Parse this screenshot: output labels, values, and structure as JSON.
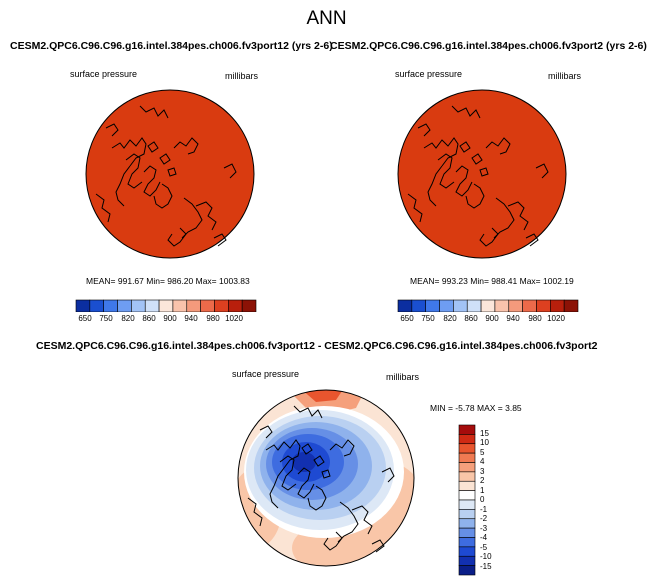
{
  "title": "ANN",
  "panels": [
    {
      "case": "CESM2.QPC6.C96.C96.g16.intel.384pes.ch006.fv3port12 (yrs 2-6)",
      "variable": "surface pressure",
      "units": "millibars",
      "stats": "MEAN= 991.67  Min= 986.20  Max= 1003.83",
      "fill_color": "#d93b10"
    },
    {
      "case": "CESM2.QPC6.C96.C96.g16.intel.384pes.ch006.fv3port2 (yrs 2-6)",
      "variable": "surface pressure",
      "units": "millibars",
      "stats": "MEAN= 993.23  Min= 988.41  Max= 1002.19",
      "fill_color": "#d93b10"
    }
  ],
  "colorbar_top": {
    "colors": [
      "#0b2ea0",
      "#1a4fd0",
      "#3f78ea",
      "#6e9df2",
      "#a2c3f6",
      "#cfe0f8",
      "#fbe6da",
      "#f9c3ac",
      "#f49a7c",
      "#ec6a4a",
      "#dd4020",
      "#b81f0c",
      "#8c1206"
    ],
    "labels": [
      "650",
      "750",
      "820",
      "860",
      "900",
      "940",
      "980",
      "1020"
    ]
  },
  "diff": {
    "case": "CESM2.QPC6.C96.C96.g16.intel.384pes.ch006.fv3port12 - CESM2.QPC6.C96.C96.g16.intel.384pes.ch006.fv3port2",
    "variable": "surface pressure",
    "units": "millibars",
    "stats": "MIN = -5.78 MAX =  3.85"
  },
  "colorbar_diff": {
    "colors": [
      "#a50c0c",
      "#cf2a14",
      "#e8552e",
      "#f07a52",
      "#f5a07c",
      "#f9c6a8",
      "#fbe4d4",
      "#ffffff",
      "#dde8f6",
      "#b9d0f1",
      "#8fb2ec",
      "#668fe6",
      "#3e6ce0",
      "#1e4ad2",
      "#1230b0",
      "#0a1e88"
    ],
    "labels": [
      "15",
      "10",
      "5",
      "4",
      "3",
      "2",
      "1",
      "0",
      "-1",
      "-2",
      "-3",
      "-4",
      "-5",
      "-10",
      "-15"
    ]
  }
}
